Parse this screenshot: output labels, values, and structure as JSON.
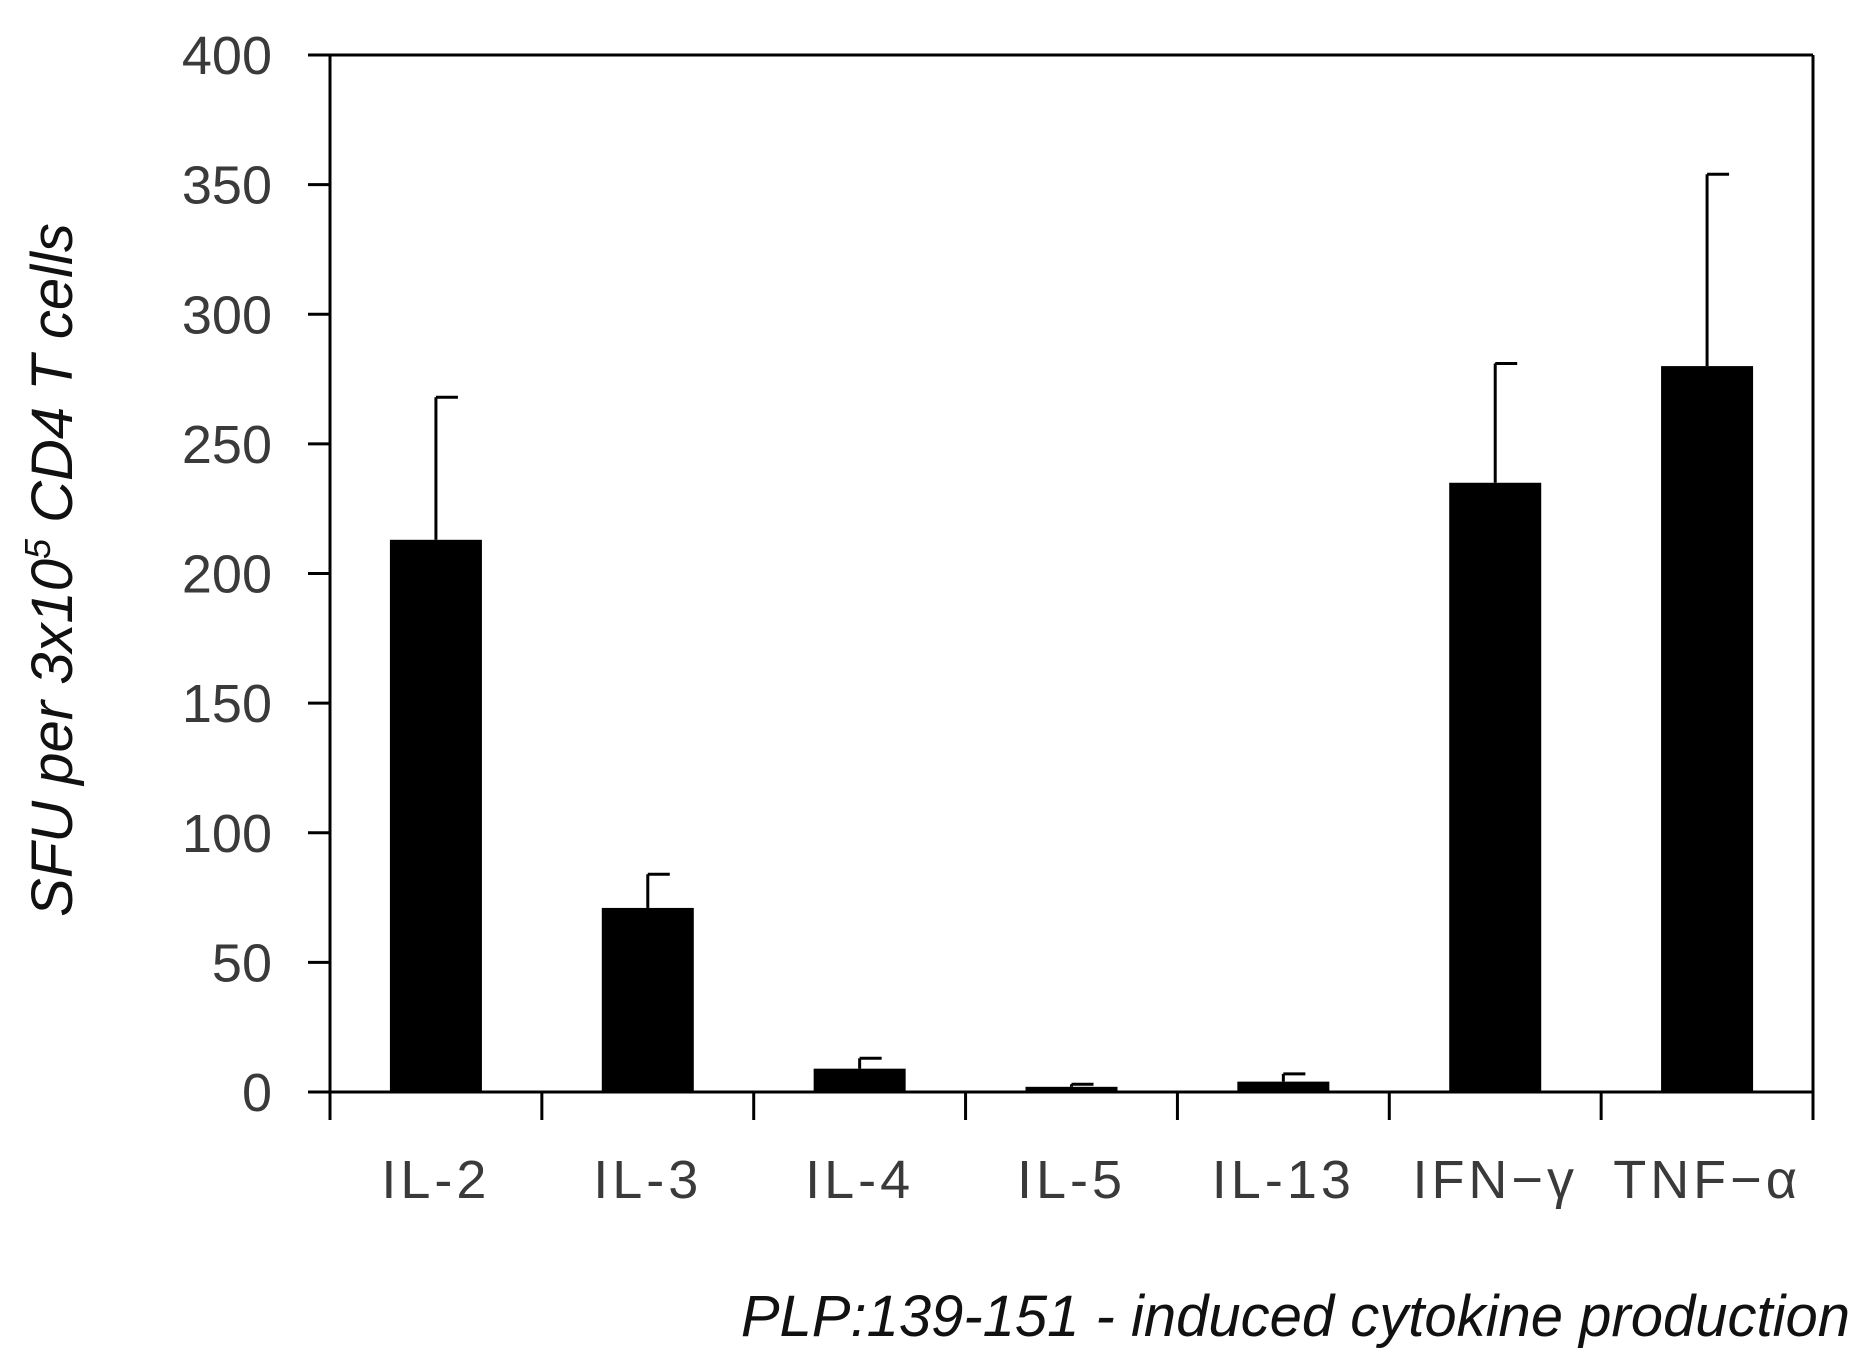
{
  "chart_data": {
    "type": "bar",
    "categories": [
      "IL-2",
      "IL-3",
      "IL-4",
      "IL-5",
      "IL-13",
      "IFN−γ",
      "TNF−α"
    ],
    "values": [
      213,
      71,
      9,
      2,
      4,
      235,
      280
    ],
    "error_upper": [
      268,
      84,
      13,
      3,
      7,
      281,
      354
    ],
    "ylim": [
      0,
      400
    ],
    "yticks": [
      0,
      50,
      100,
      150,
      200,
      250,
      300,
      350,
      400
    ],
    "ylabel_parts": {
      "before": "SFU per 3x10",
      "sup": "5",
      "after": " CD4 T cells"
    },
    "xlabel": "PLP:139-151 - induced cytokine production",
    "bar_color": "#000000",
    "grid": false,
    "legend": "none"
  }
}
